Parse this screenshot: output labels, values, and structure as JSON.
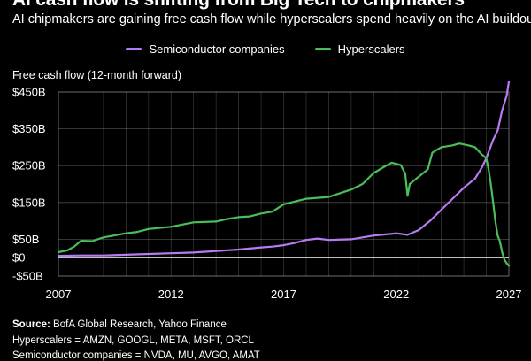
{
  "header": {
    "title": "AI cash flow is shifting from Big Tech to chipmakers",
    "subtitle": "AI chipmakers are gaining free cash flow while hyperscalers spend heavily on the AI buildout"
  },
  "footer": {
    "source_label": "Source:",
    "source_text": "BofA Global Research, Yahoo Finance",
    "note1": "Hyperscalers = AMZN, GOOGL, META, MSFT, ORCL",
    "note2": "Semiconductor companies = NVDA, MU, AVGO, AMAT"
  },
  "colors": {
    "background": "#000000",
    "semis": "#b57cf0",
    "hyperscalers": "#4cbd5a",
    "grid": "#ffffff",
    "zero_line": "#ffffff"
  },
  "chart_data": {
    "type": "line",
    "title": "AI cash flow is shifting from Big Tech to chipmakers",
    "subtitle": "AI chipmakers are gaining free cash flow while hyperscalers spend heavily on the AI buildout",
    "ylabel": "Free cash flow (12-month forward)",
    "xlabel": "",
    "xlim": [
      2007,
      2027
    ],
    "ylim": [
      -50,
      450
    ],
    "x_ticks": [
      "2007",
      "2012",
      "2017",
      "2022",
      "2027"
    ],
    "y_ticks": [
      {
        "value": 450,
        "label": "$450B"
      },
      {
        "value": 350,
        "label": "$350B"
      },
      {
        "value": 250,
        "label": "$250B"
      },
      {
        "value": 150,
        "label": "$150B"
      },
      {
        "value": 50,
        "label": "$50B"
      },
      {
        "value": 0,
        "label": "$0"
      },
      {
        "value": -50,
        "label": "-$50B"
      }
    ],
    "grid": true,
    "legend_position": "top-center",
    "series": [
      {
        "name": "Semiconductor companies",
        "color": "#b57cf0",
        "points": [
          [
            2007.0,
            5
          ],
          [
            2008.0,
            6
          ],
          [
            2009.0,
            6
          ],
          [
            2010.0,
            8
          ],
          [
            2011.0,
            10
          ],
          [
            2012.0,
            12
          ],
          [
            2013.0,
            14
          ],
          [
            2014.0,
            18
          ],
          [
            2015.0,
            22
          ],
          [
            2016.0,
            28
          ],
          [
            2016.5,
            30
          ],
          [
            2017.0,
            34
          ],
          [
            2017.5,
            40
          ],
          [
            2018.0,
            48
          ],
          [
            2018.5,
            52
          ],
          [
            2019.0,
            48
          ],
          [
            2020.0,
            50
          ],
          [
            2021.0,
            60
          ],
          [
            2021.5,
            63
          ],
          [
            2022.0,
            66
          ],
          [
            2022.5,
            62
          ],
          [
            2023.0,
            75
          ],
          [
            2023.5,
            100
          ],
          [
            2024.0,
            130
          ],
          [
            2024.5,
            160
          ],
          [
            2025.0,
            190
          ],
          [
            2025.5,
            215
          ],
          [
            2025.8,
            245
          ],
          [
            2026.0,
            270
          ],
          [
            2026.3,
            320
          ],
          [
            2026.5,
            345
          ],
          [
            2026.7,
            400
          ],
          [
            2026.9,
            440
          ],
          [
            2027.0,
            478
          ]
        ]
      },
      {
        "name": "Hyperscalers",
        "color": "#4cbd5a",
        "points": [
          [
            2007.0,
            15
          ],
          [
            2007.4,
            20
          ],
          [
            2007.7,
            30
          ],
          [
            2008.0,
            46
          ],
          [
            2008.5,
            45
          ],
          [
            2009.0,
            55
          ],
          [
            2010.0,
            66
          ],
          [
            2010.5,
            70
          ],
          [
            2011.0,
            78
          ],
          [
            2012.0,
            84
          ],
          [
            2012.5,
            90
          ],
          [
            2013.0,
            96
          ],
          [
            2014.0,
            98
          ],
          [
            2014.5,
            105
          ],
          [
            2015.0,
            110
          ],
          [
            2015.5,
            112
          ],
          [
            2016.0,
            120
          ],
          [
            2016.5,
            125
          ],
          [
            2017.0,
            145
          ],
          [
            2018.0,
            160
          ],
          [
            2019.0,
            165
          ],
          [
            2019.5,
            175
          ],
          [
            2020.0,
            185
          ],
          [
            2020.5,
            200
          ],
          [
            2021.0,
            230
          ],
          [
            2021.5,
            248
          ],
          [
            2021.8,
            258
          ],
          [
            2022.2,
            252
          ],
          [
            2022.4,
            228
          ],
          [
            2022.5,
            168
          ],
          [
            2022.6,
            200
          ],
          [
            2023.0,
            220
          ],
          [
            2023.4,
            240
          ],
          [
            2023.6,
            285
          ],
          [
            2024.0,
            300
          ],
          [
            2024.5,
            305
          ],
          [
            2024.8,
            310
          ],
          [
            2025.2,
            305
          ],
          [
            2025.5,
            300
          ],
          [
            2025.8,
            280
          ],
          [
            2026.0,
            270
          ],
          [
            2026.1,
            240
          ],
          [
            2026.2,
            200
          ],
          [
            2026.3,
            150
          ],
          [
            2026.4,
            100
          ],
          [
            2026.5,
            60
          ],
          [
            2026.6,
            45
          ],
          [
            2026.7,
            15
          ],
          [
            2026.8,
            -5
          ],
          [
            2026.9,
            -15
          ],
          [
            2027.0,
            -22
          ]
        ]
      }
    ]
  }
}
